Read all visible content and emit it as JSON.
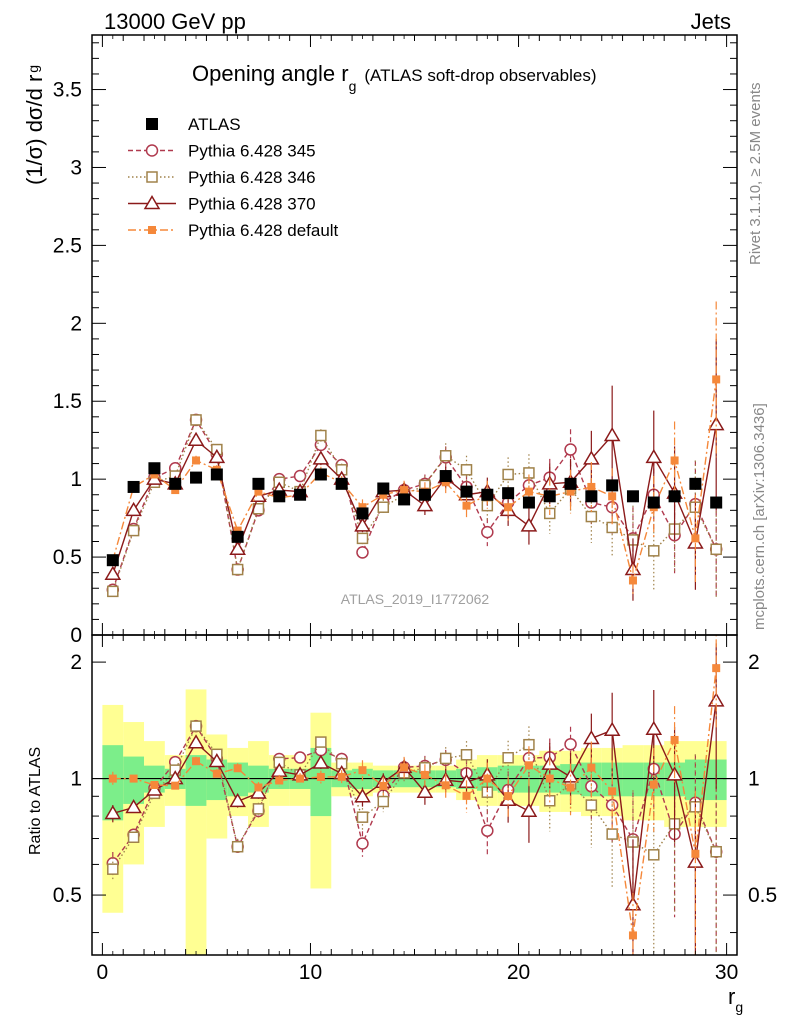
{
  "header": {
    "left": "13000 GeV pp",
    "right": "Jets"
  },
  "side_labels": {
    "rivet": "Rivet 3.1.10, ≥ 2.5M events",
    "mcplots": "mcplots.cern.ch [arXiv:1306.3436]"
  },
  "chart_data": {
    "type": "scatter",
    "title_main": "Opening angle r",
    "title_sub": "g",
    "title_extra": "(ATLAS soft-drop observables)",
    "watermark": "ATLAS_2019_I1772062",
    "xlabel": "r",
    "xlabel_sub": "g",
    "ylabel": "(1/σ) dσ/d r",
    "ylabel_sub": "g",
    "ratio_ylabel": "Ratio to ATLAS",
    "xlim": [
      -0.5,
      30.5
    ],
    "ylim": [
      0,
      3.85
    ],
    "ratio_ylim": [
      0.35,
      2.35
    ],
    "ratio_scale": "log",
    "x_ticks": [
      "0",
      "10",
      "20",
      "30"
    ],
    "y_ticks": [
      "0",
      "0.5",
      "1",
      "1.5",
      "2",
      "2.5",
      "3",
      "3.5"
    ],
    "ratio_y_ticks": [
      "0.5",
      "1",
      "2"
    ],
    "legend_position": "top-left",
    "x": [
      0.5,
      1.5,
      2.5,
      3.5,
      4.5,
      5.5,
      6.5,
      7.5,
      8.5,
      9.5,
      10.5,
      11.5,
      12.5,
      13.5,
      14.5,
      15.5,
      16.5,
      17.5,
      18.5,
      19.5,
      20.5,
      21.5,
      22.5,
      23.5,
      24.5,
      25.5,
      26.5,
      27.5,
      28.5,
      29.5
    ],
    "series": [
      {
        "name": "ATLAS",
        "color": "#000000",
        "values": [
          0.48,
          0.95,
          1.07,
          0.97,
          1.01,
          1.03,
          0.63,
          0.97,
          0.89,
          0.9,
          1.03,
          0.97,
          0.78,
          0.94,
          0.87,
          0.9,
          1.02,
          0.92,
          0.9,
          0.91,
          0.85,
          0.89,
          0.97,
          0.89,
          0.96,
          0.89,
          0.85,
          0.89,
          0.97,
          0.85
        ],
        "band_inner": [
          0.22,
          0.14,
          0.08,
          0.06,
          0.15,
          0.12,
          0.1,
          0.08,
          0.06,
          0.06,
          0.2,
          0.05,
          0.06,
          0.05,
          0.05,
          0.05,
          0.05,
          0.06,
          0.07,
          0.08,
          0.08,
          0.08,
          0.09,
          0.1,
          0.1,
          0.1,
          0.1,
          0.1,
          0.12,
          0.12
        ],
        "band_outer": [
          0.55,
          0.4,
          0.25,
          0.15,
          0.7,
          0.3,
          0.2,
          0.25,
          0.15,
          0.15,
          0.48,
          0.1,
          0.1,
          0.08,
          0.08,
          0.08,
          0.08,
          0.12,
          0.15,
          0.15,
          0.15,
          0.18,
          0.18,
          0.2,
          0.2,
          0.22,
          0.22,
          0.25,
          0.25,
          0.25
        ]
      },
      {
        "name": "Pythia 6.428 345",
        "color": "#b03a4e",
        "marker": "circle-open",
        "line": "dashed",
        "values": [
          0.29,
          0.68,
          1.01,
          1.07,
          1.38,
          1.16,
          0.42,
          0.8,
          1.0,
          1.02,
          1.22,
          1.09,
          0.53,
          0.85,
          0.93,
          0.97,
          1.14,
          0.95,
          0.66,
          0.85,
          0.96,
          1.01,
          1.19,
          0.85,
          0.82,
          0.62,
          0.9,
          0.64,
          0.84,
          0.55
        ],
        "errors": [
          0.02,
          0.02,
          0.02,
          0.02,
          0.03,
          0.03,
          0.02,
          0.03,
          0.03,
          0.03,
          0.04,
          0.04,
          0.04,
          0.05,
          0.05,
          0.06,
          0.07,
          0.08,
          0.09,
          0.1,
          0.11,
          0.12,
          0.13,
          0.15,
          0.17,
          0.2,
          0.22,
          0.25,
          0.28,
          0.3
        ]
      },
      {
        "name": "Pythia 6.428 346",
        "color": "#a0824a",
        "marker": "square-open",
        "line": "dotted",
        "values": [
          0.28,
          0.67,
          0.98,
          1.02,
          1.38,
          1.19,
          0.42,
          0.81,
          0.98,
          0.92,
          1.28,
          1.06,
          0.62,
          0.82,
          0.9,
          0.96,
          1.15,
          1.06,
          0.83,
          1.03,
          1.04,
          0.78,
          0.94,
          0.76,
          0.69,
          0.61,
          0.54,
          0.68,
          0.82,
          0.55
        ],
        "errors": [
          0.02,
          0.02,
          0.02,
          0.02,
          0.03,
          0.03,
          0.02,
          0.03,
          0.03,
          0.03,
          0.04,
          0.04,
          0.05,
          0.05,
          0.05,
          0.06,
          0.08,
          0.09,
          0.1,
          0.11,
          0.12,
          0.13,
          0.15,
          0.17,
          0.19,
          0.22,
          0.25,
          0.28,
          0.3,
          0.32
        ]
      },
      {
        "name": "Pythia 6.428 370",
        "color": "#8b1a1a",
        "marker": "triangle-open",
        "line": "solid",
        "values": [
          0.39,
          0.8,
          1.0,
          0.97,
          1.25,
          1.14,
          0.55,
          0.89,
          0.93,
          0.92,
          1.13,
          1.0,
          0.7,
          0.92,
          0.93,
          0.83,
          1.01,
          0.9,
          0.92,
          0.8,
          0.7,
          0.97,
          0.98,
          1.13,
          1.28,
          0.42,
          1.14,
          0.91,
          0.59,
          1.35
        ],
        "errors": [
          0.02,
          0.02,
          0.02,
          0.02,
          0.03,
          0.03,
          0.02,
          0.03,
          0.03,
          0.03,
          0.04,
          0.04,
          0.04,
          0.05,
          0.05,
          0.06,
          0.07,
          0.08,
          0.09,
          0.1,
          0.12,
          0.13,
          0.15,
          0.18,
          0.32,
          0.2,
          0.3,
          0.3,
          0.3,
          0.55
        ]
      },
      {
        "name": "Pythia 6.428 default",
        "color": "#f5883a",
        "marker": "square-filled",
        "line": "dashdot",
        "values": [
          0.48,
          0.95,
          1.03,
          0.93,
          1.12,
          1.06,
          0.67,
          0.92,
          0.88,
          0.9,
          1.04,
          0.98,
          0.82,
          0.9,
          0.93,
          0.92,
          0.98,
          0.83,
          0.9,
          0.82,
          0.92,
          0.89,
          0.92,
          0.95,
          0.89,
          0.35,
          0.82,
          1.12,
          0.62,
          1.64
        ],
        "errors": [
          0.02,
          0.02,
          0.02,
          0.02,
          0.03,
          0.03,
          0.02,
          0.03,
          0.03,
          0.03,
          0.04,
          0.04,
          0.05,
          0.05,
          0.06,
          0.06,
          0.07,
          0.08,
          0.09,
          0.1,
          0.11,
          0.12,
          0.14,
          0.16,
          0.18,
          0.1,
          0.2,
          0.25,
          0.28,
          0.5
        ]
      }
    ]
  }
}
